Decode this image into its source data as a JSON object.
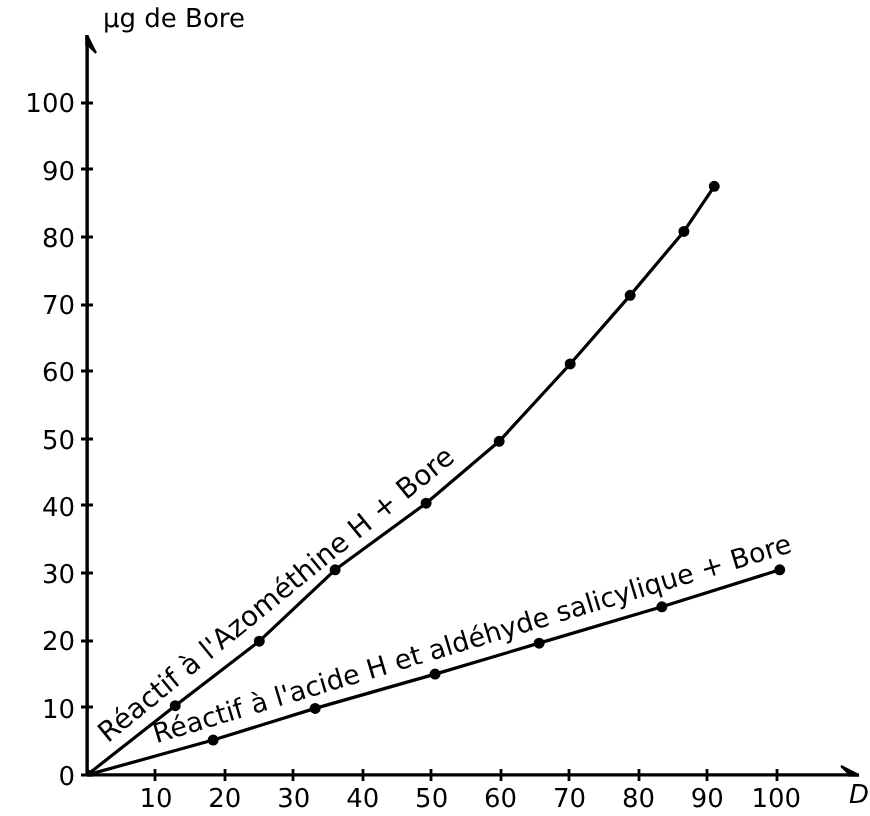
{
  "chart_data": {
    "type": "line",
    "ylabel": "µg de Bore",
    "xlabel": "D",
    "xlim": [
      0,
      112
    ],
    "ylim": [
      0,
      110
    ],
    "xticks": [
      10,
      20,
      30,
      40,
      50,
      60,
      70,
      80,
      90,
      100
    ],
    "yticks": [
      0,
      10,
      20,
      30,
      40,
      50,
      60,
      70,
      80,
      90,
      100
    ],
    "marker": "circle",
    "line_style": "solid",
    "series": [
      {
        "name": "Réactif à l'Azométhine H + Bore",
        "color": "#000000",
        "x": [
          0,
          12.8,
          25,
          36,
          49.2,
          59.8,
          70.1,
          78.8,
          86.6,
          91
        ],
        "values": [
          0,
          10.3,
          19.9,
          30.5,
          40.4,
          49.6,
          61.1,
          71.3,
          80.8,
          87.5
        ]
      },
      {
        "name": "Réactif à l'acide H et aldéhyde salicylique + Bore",
        "color": "#000000",
        "x": [
          0,
          18.3,
          33.1,
          50.5,
          65.6,
          83.4,
          100.5
        ],
        "values": [
          0,
          5.2,
          9.9,
          15,
          19.6,
          25,
          30.5
        ]
      }
    ]
  }
}
